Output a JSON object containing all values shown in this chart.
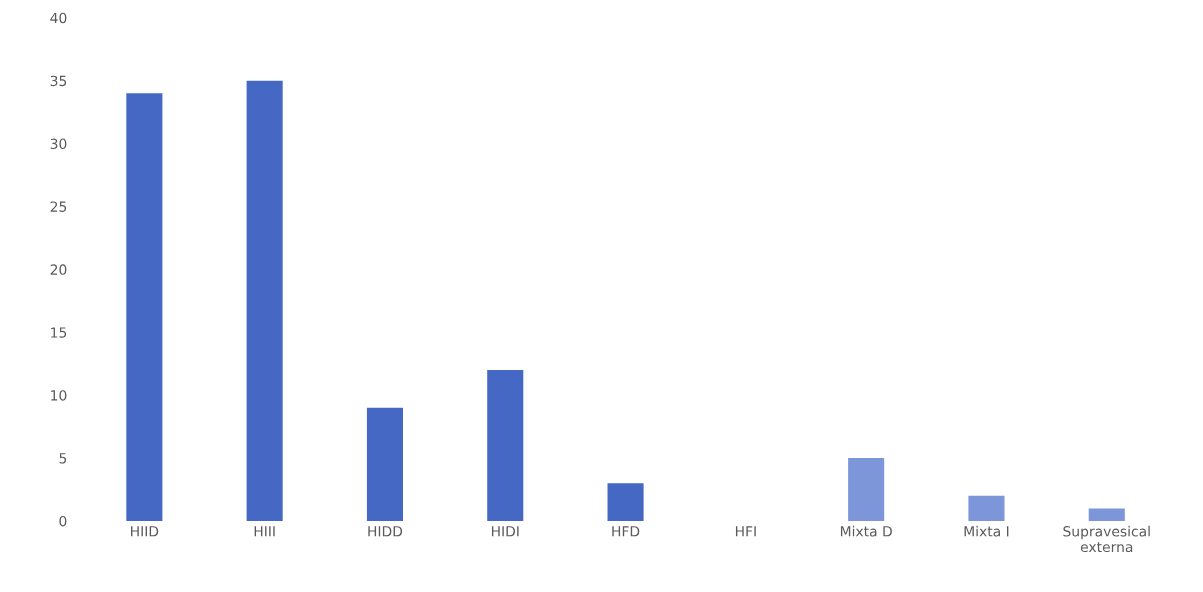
{
  "chart_data": {
    "type": "bar",
    "categories": [
      "HIID",
      "HIII",
      "HIDD",
      "HIDI",
      "HFD",
      "HFI",
      "Mixta D",
      "Mixta I",
      "Supravesical externa"
    ],
    "values": [
      34,
      35,
      9,
      12,
      3,
      0,
      5,
      2,
      1
    ],
    "colors": [
      "#4468c4",
      "#4468c4",
      "#4468c4",
      "#4468c4",
      "#4468c4",
      "#4468c4",
      "#7d95d9",
      "#7d95d9",
      "#7d95d9"
    ],
    "ylim": [
      0,
      40
    ],
    "yticks": [
      0,
      5,
      10,
      15,
      20,
      25,
      30,
      35,
      40
    ],
    "grid": false,
    "legend": false
  }
}
